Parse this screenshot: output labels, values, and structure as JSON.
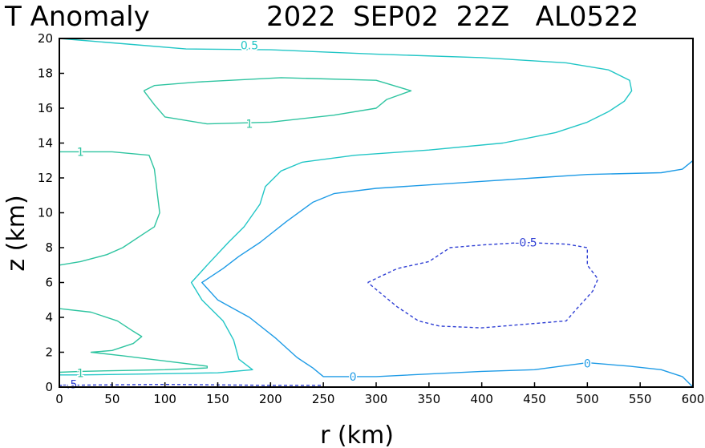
{
  "chart_data": {
    "type": "contour",
    "title": "T Anomaly",
    "subtitle": "2022  SEP02  22Z   AL0522",
    "xlabel": "r (km)",
    "ylabel": "z (km)",
    "xlim": [
      0,
      600
    ],
    "ylim": [
      0,
      20
    ],
    "xticks": [
      "0",
      "50",
      "100",
      "150",
      "200",
      "250",
      "300",
      "350",
      "400",
      "450",
      "500",
      "550",
      "600"
    ],
    "yticks": [
      "0",
      "2",
      "4",
      "6",
      "8",
      "10",
      "12",
      "14",
      "16",
      "18",
      "20"
    ],
    "grid": false,
    "colors": {
      "positive_high": "#2ec4a0",
      "positive_low": "#25c8c8",
      "zero": "#1e9be6",
      "negative": "#2f3fd4"
    },
    "contours": [
      {
        "name": "contour-0.5-outer",
        "level": 0.5,
        "color": "#22c6c6",
        "dash": false,
        "points": [
          [
            0,
            20
          ],
          [
            60,
            19.7
          ],
          [
            120,
            19.4
          ],
          [
            200,
            19.35
          ],
          [
            300,
            19.1
          ],
          [
            400,
            18.9
          ],
          [
            480,
            18.6
          ],
          [
            520,
            18.2
          ],
          [
            540,
            17.6
          ],
          [
            542,
            17.0
          ],
          [
            535,
            16.4
          ],
          [
            520,
            15.8
          ],
          [
            500,
            15.2
          ],
          [
            470,
            14.6
          ],
          [
            420,
            14.0
          ],
          [
            350,
            13.6
          ],
          [
            280,
            13.3
          ],
          [
            230,
            12.9
          ],
          [
            210,
            12.4
          ],
          [
            195,
            11.5
          ],
          [
            190,
            10.5
          ],
          [
            175,
            9.2
          ],
          [
            160,
            8.3
          ],
          [
            140,
            7.0
          ],
          [
            125,
            6.0
          ],
          [
            135,
            5.0
          ],
          [
            155,
            3.8
          ],
          [
            165,
            2.7
          ],
          [
            170,
            1.6
          ],
          [
            183,
            1.0
          ],
          [
            150,
            0.82
          ],
          [
            80,
            0.75
          ],
          [
            20,
            0.7
          ],
          [
            0,
            0.7
          ]
        ]
      },
      {
        "name": "contour-1-top",
        "level": 1,
        "color": "#2ec4a0",
        "dash": false,
        "points": [
          [
            80,
            17.0
          ],
          [
            90,
            17.3
          ],
          [
            130,
            17.5
          ],
          [
            210,
            17.75
          ],
          [
            300,
            17.6
          ],
          [
            333,
            17.0
          ],
          [
            310,
            16.5
          ],
          [
            300,
            16.0
          ],
          [
            260,
            15.6
          ],
          [
            200,
            15.2
          ],
          [
            140,
            15.1
          ],
          [
            100,
            15.5
          ],
          [
            90,
            16.2
          ],
          [
            80,
            17.0
          ]
        ]
      },
      {
        "name": "contour-1-mid",
        "level": 1,
        "color": "#2ec4a0",
        "dash": false,
        "points": [
          [
            0,
            13.5
          ],
          [
            50,
            13.5
          ],
          [
            85,
            13.3
          ],
          [
            90,
            12.5
          ],
          [
            93,
            11.0
          ],
          [
            95,
            10.0
          ],
          [
            90,
            9.2
          ],
          [
            80,
            8.8
          ],
          [
            60,
            8.0
          ],
          [
            45,
            7.6
          ],
          [
            20,
            7.2
          ],
          [
            0,
            7.0
          ]
        ]
      },
      {
        "name": "contour-1-low",
        "level": 1,
        "color": "#2ec4a0",
        "dash": false,
        "points": [
          [
            0,
            4.5
          ],
          [
            30,
            4.3
          ],
          [
            55,
            3.8
          ],
          [
            70,
            3.2
          ],
          [
            78,
            2.9
          ],
          [
            70,
            2.5
          ],
          [
            50,
            2.1
          ],
          [
            30,
            2.0
          ],
          [
            60,
            1.8
          ],
          [
            100,
            1.5
          ],
          [
            140,
            1.2
          ],
          [
            140,
            1.1
          ],
          [
            100,
            1.0
          ],
          [
            60,
            0.95
          ],
          [
            20,
            0.9
          ],
          [
            0,
            0.85
          ]
        ]
      },
      {
        "name": "contour-0",
        "level": 0,
        "color": "#1e9be6",
        "dash": false,
        "points": [
          [
            600,
            13.0
          ],
          [
            590,
            12.5
          ],
          [
            570,
            12.3
          ],
          [
            500,
            12.2
          ],
          [
            450,
            12.0
          ],
          [
            400,
            11.8
          ],
          [
            350,
            11.6
          ],
          [
            300,
            11.4
          ],
          [
            260,
            11.1
          ],
          [
            240,
            10.6
          ],
          [
            215,
            9.5
          ],
          [
            190,
            8.3
          ],
          [
            170,
            7.5
          ],
          [
            155,
            6.8
          ],
          [
            135,
            6.0
          ],
          [
            150,
            5.0
          ],
          [
            180,
            4.0
          ],
          [
            205,
            2.8
          ],
          [
            225,
            1.7
          ],
          [
            240,
            1.1
          ],
          [
            250,
            0.6
          ],
          [
            300,
            0.6
          ],
          [
            400,
            0.9
          ],
          [
            450,
            1.0
          ],
          [
            500,
            1.4
          ],
          [
            540,
            1.2
          ],
          [
            570,
            1.0
          ],
          [
            590,
            0.6
          ],
          [
            600,
            0.0
          ]
        ]
      },
      {
        "name": "contour-neg0.5-mid",
        "level": -0.5,
        "color": "#2f3fd4",
        "dash": true,
        "points": [
          [
            292,
            6.0
          ],
          [
            320,
            6.8
          ],
          [
            350,
            7.2
          ],
          [
            370,
            8.0
          ],
          [
            400,
            8.15
          ],
          [
            440,
            8.3
          ],
          [
            480,
            8.2
          ],
          [
            500,
            8.0
          ],
          [
            500,
            7.0
          ],
          [
            510,
            6.2
          ],
          [
            505,
            5.5
          ],
          [
            490,
            4.5
          ],
          [
            480,
            3.8
          ],
          [
            440,
            3.6
          ],
          [
            400,
            3.4
          ],
          [
            360,
            3.5
          ],
          [
            340,
            3.8
          ],
          [
            320,
            4.6
          ],
          [
            292,
            6.0
          ]
        ]
      },
      {
        "name": "contour-neg0.5-base",
        "level": -0.5,
        "color": "#2f3fd4",
        "dash": true,
        "points": [
          [
            0,
            0.1
          ],
          [
            30,
            0.12
          ],
          [
            100,
            0.15
          ],
          [
            200,
            0.1
          ],
          [
            250,
            0.1
          ]
        ]
      }
    ],
    "contour_labels": [
      {
        "text": "0.5",
        "x": 180,
        "y": 19.6,
        "color": "#22c6c6"
      },
      {
        "text": "1",
        "x": 180,
        "y": 15.1,
        "color": "#2ec4a0"
      },
      {
        "text": "1",
        "x": 20,
        "y": 13.5,
        "color": "#2ec4a0"
      },
      {
        "text": "1",
        "x": 20,
        "y": 0.8,
        "color": "#2ec4a0"
      },
      {
        "text": "0",
        "x": 278,
        "y": 0.6,
        "color": "#1e9be6"
      },
      {
        "text": "0",
        "x": 500,
        "y": 1.35,
        "color": "#1e9be6"
      },
      {
        "text": "-0.5",
        "x": 442,
        "y": 8.3,
        "color": "#2f3fd4"
      },
      {
        "text": "-.5",
        "x": 10,
        "y": 0.15,
        "color": "#2f3fd4"
      }
    ]
  }
}
